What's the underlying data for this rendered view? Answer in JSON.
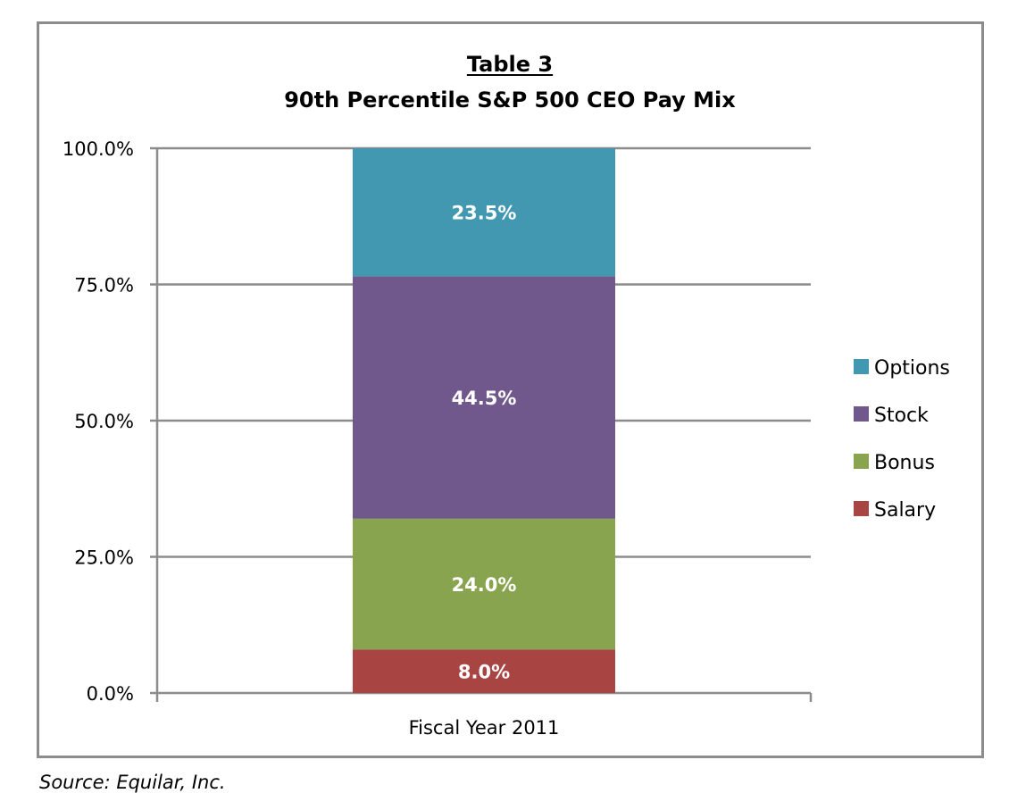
{
  "chart_data": {
    "type": "bar",
    "stacked": true,
    "title_line1": "Table 3",
    "title_line2": "90th Percentile S&P 500 CEO Pay Mix",
    "categories": [
      "Fiscal Year 2011"
    ],
    "series": [
      {
        "name": "Salary",
        "values": [
          8.0
        ],
        "label": "8.0%",
        "color": "#a84542"
      },
      {
        "name": "Bonus",
        "values": [
          24.0
        ],
        "label": "24.0%",
        "color": "#88a44f"
      },
      {
        "name": "Stock",
        "values": [
          44.5
        ],
        "label": "44.5%",
        "color": "#70578c"
      },
      {
        "name": "Options",
        "values": [
          23.5
        ],
        "label": "23.5%",
        "color": "#4198b0"
      }
    ],
    "legend_order": [
      "Options",
      "Stock",
      "Bonus",
      "Salary"
    ],
    "legend_position": "right",
    "y_ticks": [
      0,
      25,
      50,
      75,
      100
    ],
    "y_tick_labels": [
      "0.0%",
      "25.0%",
      "50.0%",
      "75.0%",
      "100.0%"
    ],
    "ylim": [
      0,
      100
    ],
    "xlabel": "",
    "ylabel": "",
    "grid": true
  },
  "source_note": "Source:  Equilar, Inc."
}
